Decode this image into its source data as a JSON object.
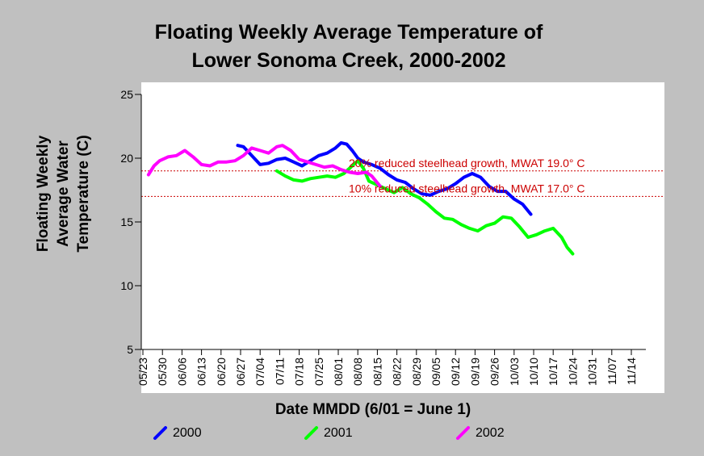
{
  "chart_data": {
    "type": "line",
    "title_lines": [
      "Floating Weekly Average Temperature of",
      "Lower Sonoma Creek, 2000-2002"
    ],
    "ylabel_lines": [
      "Floating Weekly",
      "Average Water",
      "Temperature (C)"
    ],
    "xlabel": "Date MMDD (6/01 = June 1)",
    "ylim": [
      5,
      25
    ],
    "y_ticks": [
      5,
      10,
      15,
      20,
      25
    ],
    "x_tick_labels": [
      "05/23",
      "05/30",
      "06/06",
      "06/13",
      "06/20",
      "06/27",
      "07/04",
      "07/11",
      "07/18",
      "07/25",
      "08/01",
      "08/08",
      "08/15",
      "08/22",
      "08/29",
      "09/05",
      "09/12",
      "09/19",
      "09/26",
      "10/03",
      "10/10",
      "10/17",
      "10/24",
      "10/31",
      "11/07",
      "11/14"
    ],
    "grid": false,
    "legend_position": "bottom",
    "reference_lines": [
      {
        "label": "20% reduced steelhead growth, MWAT 19.0° C",
        "y": 19.0,
        "color": "#cc0000"
      },
      {
        "label": "10% reduced steelhead growth, MWAT 17.0° C",
        "y": 17.0,
        "color": "#cc0000"
      }
    ],
    "series": [
      {
        "name": "2000",
        "color": "#0000ff",
        "points": [
          [
            "06/26",
            21.0
          ],
          [
            "06/28",
            20.9
          ],
          [
            "07/01",
            20.2
          ],
          [
            "07/04",
            19.5
          ],
          [
            "07/07",
            19.6
          ],
          [
            "07/10",
            19.9
          ],
          [
            "07/13",
            20.0
          ],
          [
            "07/16",
            19.7
          ],
          [
            "07/19",
            19.4
          ],
          [
            "07/22",
            19.8
          ],
          [
            "07/25",
            20.2
          ],
          [
            "07/28",
            20.4
          ],
          [
            "07/31",
            20.8
          ],
          [
            "08/02",
            21.2
          ],
          [
            "08/04",
            21.1
          ],
          [
            "08/06",
            20.6
          ],
          [
            "08/08",
            20.0
          ],
          [
            "08/10",
            19.7
          ],
          [
            "08/13",
            19.5
          ],
          [
            "08/16",
            19.2
          ],
          [
            "08/19",
            18.7
          ],
          [
            "08/22",
            18.3
          ],
          [
            "08/25",
            18.1
          ],
          [
            "08/28",
            17.6
          ],
          [
            "08/31",
            17.2
          ],
          [
            "09/03",
            17.1
          ],
          [
            "09/06",
            17.4
          ],
          [
            "09/09",
            17.6
          ],
          [
            "09/12",
            18.0
          ],
          [
            "09/15",
            18.5
          ],
          [
            "09/18",
            18.8
          ],
          [
            "09/21",
            18.5
          ],
          [
            "09/24",
            17.8
          ],
          [
            "09/27",
            17.4
          ],
          [
            "09/30",
            17.4
          ],
          [
            "10/03",
            16.8
          ],
          [
            "10/06",
            16.4
          ],
          [
            "10/09",
            15.6
          ]
        ]
      },
      {
        "name": "2001",
        "color": "#00ff00",
        "points": [
          [
            "07/10",
            19.0
          ],
          [
            "07/13",
            18.6
          ],
          [
            "07/16",
            18.3
          ],
          [
            "07/19",
            18.2
          ],
          [
            "07/22",
            18.4
          ],
          [
            "07/25",
            18.5
          ],
          [
            "07/28",
            18.6
          ],
          [
            "07/31",
            18.5
          ],
          [
            "08/03",
            18.8
          ],
          [
            "08/06",
            19.4
          ],
          [
            "08/08",
            19.8
          ],
          [
            "08/10",
            19.2
          ],
          [
            "08/12",
            18.2
          ],
          [
            "08/15",
            17.9
          ],
          [
            "08/18",
            17.6
          ],
          [
            "08/21",
            17.3
          ],
          [
            "08/24",
            17.7
          ],
          [
            "08/27",
            17.2
          ],
          [
            "08/30",
            16.9
          ],
          [
            "09/02",
            16.4
          ],
          [
            "09/05",
            15.8
          ],
          [
            "09/08",
            15.3
          ],
          [
            "09/11",
            15.2
          ],
          [
            "09/14",
            14.8
          ],
          [
            "09/17",
            14.5
          ],
          [
            "09/20",
            14.3
          ],
          [
            "09/23",
            14.7
          ],
          [
            "09/26",
            14.9
          ],
          [
            "09/29",
            15.4
          ],
          [
            "10/02",
            15.3
          ],
          [
            "10/05",
            14.6
          ],
          [
            "10/08",
            13.8
          ],
          [
            "10/11",
            14.0
          ],
          [
            "10/14",
            14.3
          ],
          [
            "10/17",
            14.5
          ],
          [
            "10/20",
            13.8
          ],
          [
            "10/22",
            13.0
          ],
          [
            "10/24",
            12.5
          ]
        ]
      },
      {
        "name": "2002",
        "color": "#ff00ff",
        "points": [
          [
            "05/25",
            18.7
          ],
          [
            "05/27",
            19.4
          ],
          [
            "05/29",
            19.8
          ],
          [
            "06/01",
            20.1
          ],
          [
            "06/04",
            20.2
          ],
          [
            "06/07",
            20.6
          ],
          [
            "06/10",
            20.1
          ],
          [
            "06/13",
            19.5
          ],
          [
            "06/16",
            19.4
          ],
          [
            "06/19",
            19.7
          ],
          [
            "06/22",
            19.7
          ],
          [
            "06/25",
            19.8
          ],
          [
            "06/28",
            20.2
          ],
          [
            "07/01",
            20.8
          ],
          [
            "07/04",
            20.6
          ],
          [
            "07/07",
            20.4
          ],
          [
            "07/10",
            20.9
          ],
          [
            "07/12",
            21.0
          ],
          [
            "07/15",
            20.6
          ],
          [
            "07/18",
            19.9
          ],
          [
            "07/21",
            19.7
          ],
          [
            "07/24",
            19.5
          ],
          [
            "07/27",
            19.3
          ],
          [
            "07/30",
            19.4
          ],
          [
            "08/02",
            19.1
          ],
          [
            "08/05",
            18.9
          ],
          [
            "08/08",
            18.8
          ],
          [
            "08/11",
            18.9
          ],
          [
            "08/13",
            18.6
          ],
          [
            "08/16",
            17.8
          ]
        ]
      }
    ]
  }
}
